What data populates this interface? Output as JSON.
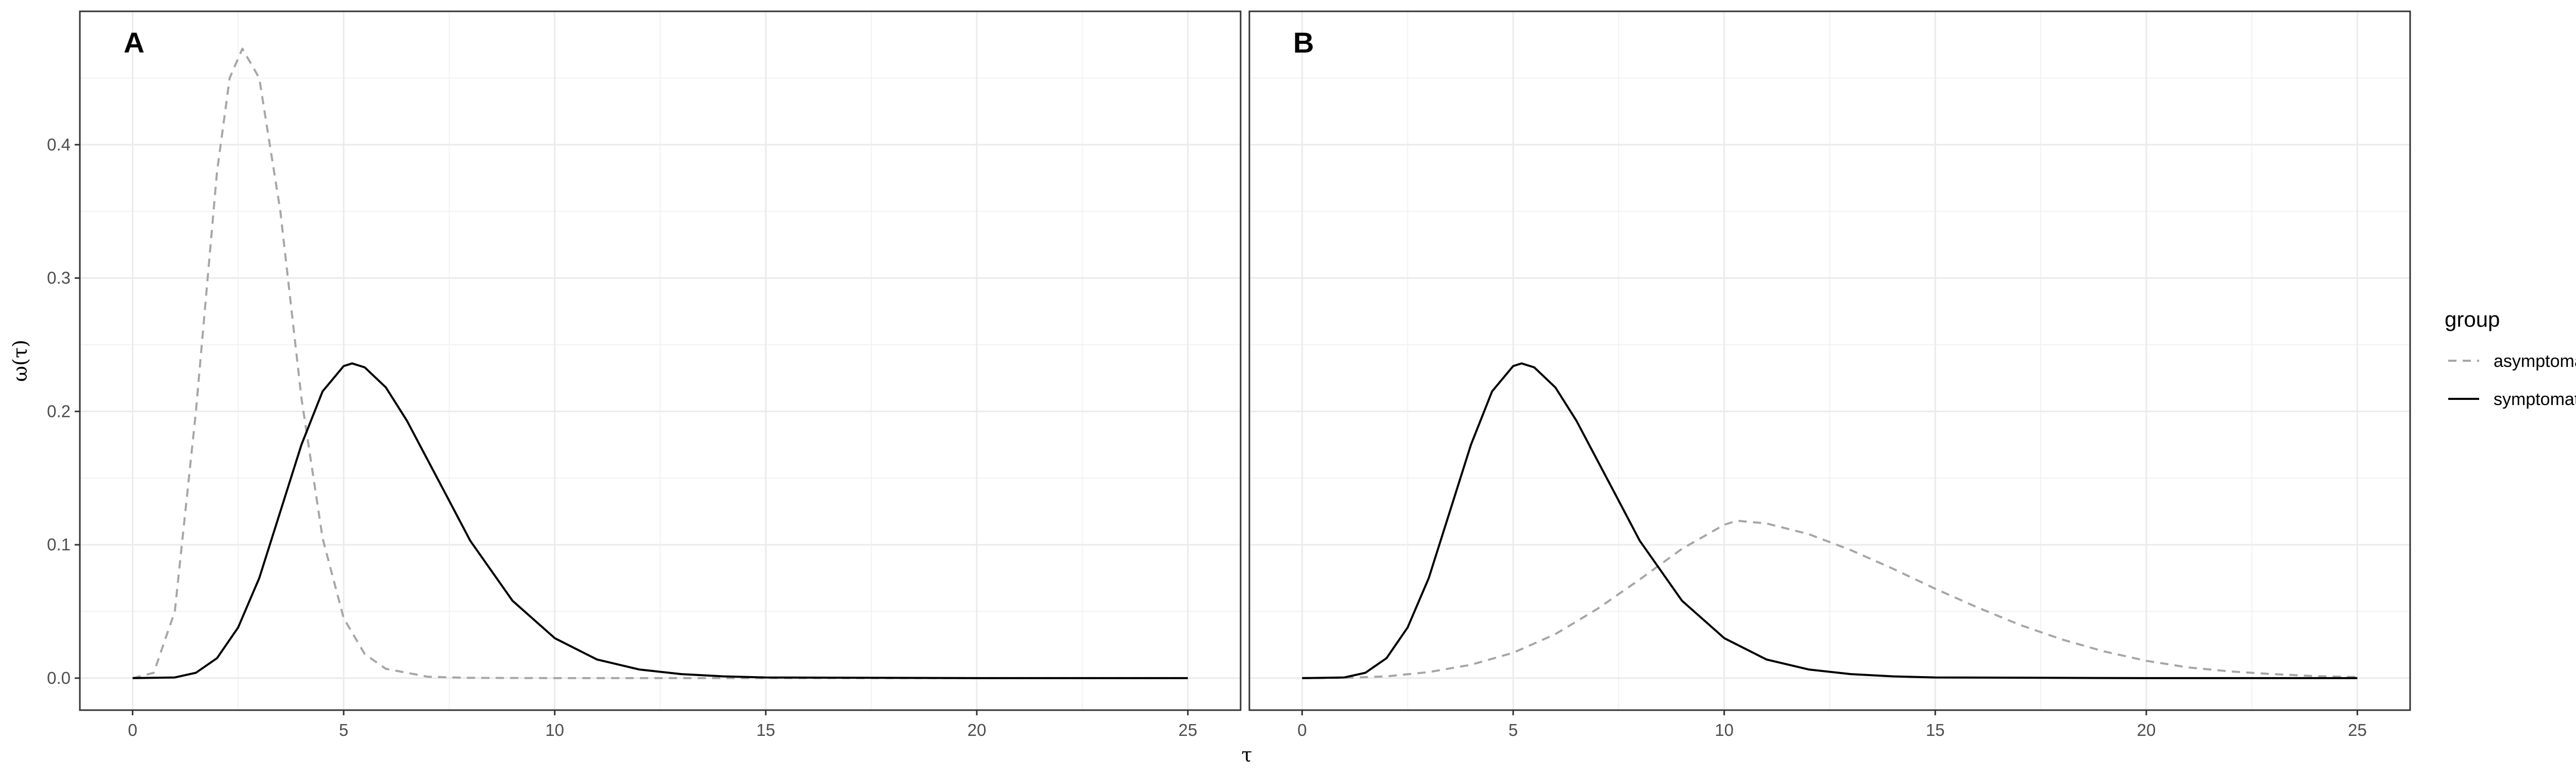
{
  "chart_data": {
    "type": "line",
    "xlabel": "τ",
    "ylabel": "ω(τ)",
    "xlim": [
      -1.25,
      26.25
    ],
    "ylim": [
      -0.024,
      0.5
    ],
    "x_ticks": [
      0,
      5,
      10,
      15,
      20,
      25
    ],
    "y_ticks": [
      0.0,
      0.1,
      0.2,
      0.3,
      0.4
    ],
    "y_tick_labels": [
      "0.0",
      "0.1",
      "0.2",
      "0.3",
      "0.4"
    ],
    "grid": true,
    "legend": {
      "title": "group",
      "position": "right",
      "entries": [
        {
          "label": "asymptomatic",
          "style": "dashed",
          "color": "#a6a6a6"
        },
        {
          "label": "symptomatic",
          "style": "solid",
          "color": "#000000"
        }
      ]
    },
    "panels": [
      {
        "tag": "A",
        "series": [
          {
            "name": "asymptomatic",
            "style": "dashed",
            "color": "#a6a6a6",
            "x": [
              0,
              0.5,
              1,
              1.5,
              2,
              2.3,
              2.6,
              3,
              3.5,
              4,
              4.5,
              5,
              5.5,
              6,
              7,
              8,
              10,
              12,
              15,
              20,
              25
            ],
            "y": [
              0,
              0.004,
              0.05,
              0.2,
              0.38,
              0.45,
              0.472,
              0.45,
              0.35,
              0.21,
              0.105,
              0.045,
              0.018,
              0.007,
              0.001,
              0.0002,
              0,
              0,
              0,
              0,
              0
            ]
          },
          {
            "name": "symptomatic",
            "style": "solid",
            "color": "#000000",
            "x": [
              0,
              1,
              1.5,
              2,
              2.5,
              3,
              3.5,
              4,
              4.5,
              5,
              5.2,
              5.5,
              6,
              6.5,
              7,
              7.5,
              8,
              9,
              10,
              11,
              12,
              13,
              14,
              15,
              20,
              25
            ],
            "y": [
              0,
              0.0005,
              0.004,
              0.015,
              0.038,
              0.075,
              0.125,
              0.175,
              0.215,
              0.234,
              0.236,
              0.233,
              0.218,
              0.193,
              0.163,
              0.133,
              0.103,
              0.058,
              0.03,
              0.014,
              0.0065,
              0.003,
              0.0013,
              0.0005,
              0,
              0
            ]
          }
        ]
      },
      {
        "tag": "B",
        "series": [
          {
            "name": "asymptomatic",
            "style": "dashed",
            "color": "#a6a6a6",
            "x": [
              0,
              1,
              2,
              3,
              4,
              5,
              6,
              7,
              8,
              9,
              10,
              10.3,
              11,
              12,
              13,
              14,
              15,
              16,
              17,
              18,
              19,
              20,
              21,
              22,
              23,
              24,
              25
            ],
            "y": [
              0,
              0.0002,
              0.0013,
              0.0045,
              0.01,
              0.019,
              0.033,
              0.052,
              0.074,
              0.097,
              0.115,
              0.118,
              0.116,
              0.108,
              0.096,
              0.082,
              0.067,
              0.053,
              0.04,
              0.029,
              0.02,
              0.013,
              0.008,
              0.005,
              0.003,
              0.0015,
              0.0008
            ]
          },
          {
            "name": "symptomatic",
            "style": "solid",
            "color": "#000000",
            "x": [
              0,
              1,
              1.5,
              2,
              2.5,
              3,
              3.5,
              4,
              4.5,
              5,
              5.2,
              5.5,
              6,
              6.5,
              7,
              7.5,
              8,
              9,
              10,
              11,
              12,
              13,
              14,
              15,
              20,
              25
            ],
            "y": [
              0,
              0.0005,
              0.004,
              0.015,
              0.038,
              0.075,
              0.125,
              0.175,
              0.215,
              0.234,
              0.236,
              0.233,
              0.218,
              0.193,
              0.163,
              0.133,
              0.103,
              0.058,
              0.03,
              0.014,
              0.0065,
              0.003,
              0.0013,
              0.0005,
              0,
              0
            ]
          }
        ]
      }
    ]
  }
}
